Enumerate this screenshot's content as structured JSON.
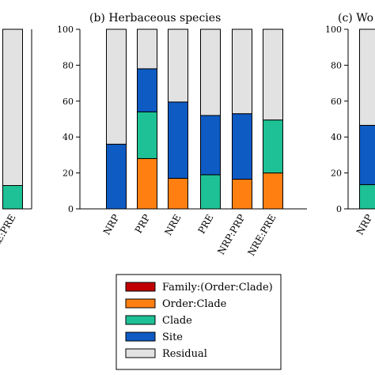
{
  "colors": {
    "family": "#c00000",
    "order": "#ff8010",
    "clade": "#1ec195",
    "site": "#0e5bc4",
    "residual": "#e2e2e2"
  },
  "legend": [
    {
      "key": "family",
      "label": "Family:(Order:Clade)"
    },
    {
      "key": "order",
      "label": "Order:Clade"
    },
    {
      "key": "clade",
      "label": "Clade"
    },
    {
      "key": "site",
      "label": "Site"
    },
    {
      "key": "residual",
      "label": "Residual"
    }
  ],
  "chart_data": [
    {
      "type": "bar",
      "stacked": true,
      "title": "",
      "categories": [
        "NRE:PRE"
      ],
      "ylim": [
        0,
        100
      ],
      "yticks": [],
      "series": [
        {
          "key": "family",
          "values": [
            0
          ]
        },
        {
          "key": "order",
          "values": [
            0
          ]
        },
        {
          "key": "clade",
          "values": [
            13
          ]
        },
        {
          "key": "site",
          "values": [
            0
          ]
        },
        {
          "key": "residual",
          "values": [
            87
          ]
        }
      ]
    },
    {
      "type": "bar",
      "stacked": true,
      "title": "(b) Herbaceous species",
      "categories": [
        "NRP",
        "PRP",
        "NRE",
        "PRE",
        "NRP:PRP",
        "NRE:PRE"
      ],
      "ylim": [
        0,
        100
      ],
      "yticks": [
        0,
        20,
        40,
        60,
        80,
        100
      ],
      "series": [
        {
          "key": "family",
          "values": [
            0,
            0,
            0,
            0,
            0,
            0
          ]
        },
        {
          "key": "order",
          "values": [
            0,
            28,
            17,
            0,
            16.5,
            20
          ]
        },
        {
          "key": "clade",
          "values": [
            0,
            26,
            0,
            19,
            0,
            29.5
          ]
        },
        {
          "key": "site",
          "values": [
            36,
            24,
            42.5,
            33,
            36.5,
            0
          ]
        },
        {
          "key": "residual",
          "values": [
            64,
            22,
            40.5,
            48,
            47,
            50.5
          ]
        }
      ]
    },
    {
      "type": "bar",
      "stacked": true,
      "title": "(c) Wo",
      "categories": [
        "NRP"
      ],
      "ylim": [
        0,
        100
      ],
      "yticks": [
        0,
        20,
        40,
        60,
        80,
        100
      ],
      "series": [
        {
          "key": "family",
          "values": [
            0
          ]
        },
        {
          "key": "order",
          "values": [
            0
          ]
        },
        {
          "key": "clade",
          "values": [
            13.5
          ]
        },
        {
          "key": "site",
          "values": [
            33
          ]
        },
        {
          "key": "residual",
          "values": [
            53.5
          ]
        }
      ]
    }
  ]
}
